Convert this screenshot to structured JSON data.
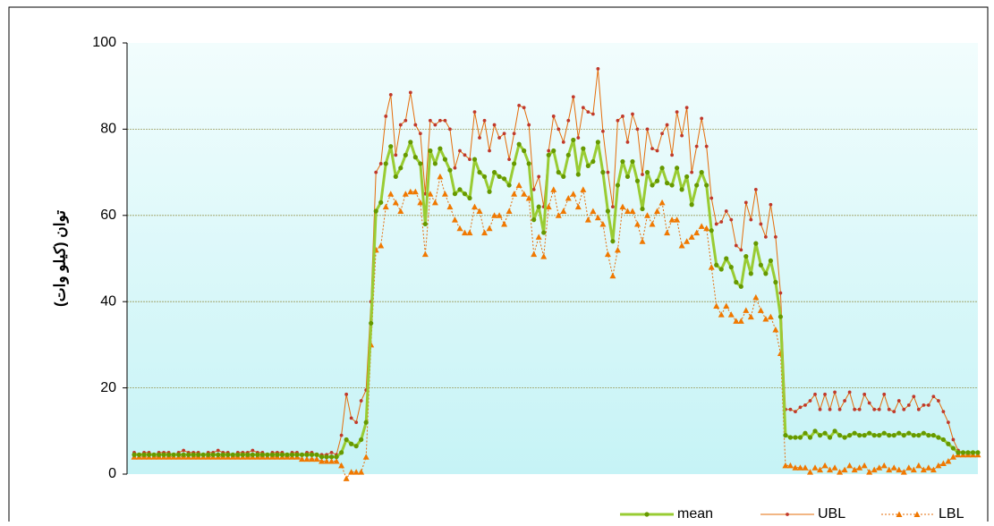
{
  "chart_data": {
    "type": "line",
    "y_label": "توان (کیلو وات)",
    "ylim": [
      0,
      100
    ],
    "yticks": [
      0,
      20,
      40,
      60,
      80,
      100
    ],
    "grid": true,
    "legend": "bottom-right",
    "series": [
      {
        "name": "mean",
        "color": "#99cc33",
        "marker_color": "#669900",
        "marker": "circle",
        "dashed": false,
        "values": [
          4.5,
          4.5,
          4.5,
          4.5,
          4.5,
          4.5,
          4.5,
          4.5,
          4.5,
          4.5,
          4.5,
          4.5,
          4.5,
          4.5,
          4.5,
          4.5,
          4.5,
          4.5,
          4.5,
          4.5,
          4.5,
          4.5,
          4.5,
          4.5,
          4.5,
          4.5,
          4.5,
          4.5,
          4.5,
          4.5,
          4.5,
          4.5,
          4.5,
          4.5,
          4.5,
          4.5,
          4.5,
          4.5,
          4,
          4,
          4,
          4,
          5,
          8,
          7,
          6.5,
          8,
          12,
          35,
          61,
          63,
          72,
          76,
          69,
          71,
          74,
          77,
          73.5,
          72,
          58,
          75,
          72,
          75.5,
          73,
          70.5,
          65,
          66,
          65,
          64,
          73,
          70,
          69,
          65.5,
          70,
          69,
          68.5,
          67,
          72,
          76.5,
          75,
          72,
          59,
          62,
          56,
          74,
          75,
          70,
          69,
          74,
          77.5,
          69.5,
          75.5,
          71.5,
          72.5,
          77,
          70,
          61,
          54,
          67,
          72.5,
          69,
          72.5,
          68,
          61.5,
          70,
          67,
          68,
          71,
          67.5,
          67,
          71,
          66,
          69,
          62.5,
          67,
          70,
          67,
          56.5,
          48.5,
          47.5,
          50,
          48,
          44.5,
          43.5,
          50.5,
          46.5,
          53.5,
          48.5,
          46.5,
          49.5,
          44.5,
          36.5,
          9,
          8.5,
          8.5,
          8.5,
          9.5,
          8.5,
          10,
          9,
          9.5,
          8.5,
          10,
          9,
          8.5,
          9,
          9.5,
          9,
          9,
          9.5,
          9,
          9,
          9.5,
          9,
          9,
          9.5,
          9,
          9.5,
          9,
          9,
          9.5,
          9,
          9,
          8.5,
          8,
          7,
          6,
          5,
          5,
          5,
          5,
          5
        ]
      },
      {
        "name": "UBL",
        "color": "#e46c0a",
        "marker_color": "#c0392b",
        "marker": "circle",
        "dashed": false,
        "values": [
          5,
          4.5,
          5,
          5,
          4.5,
          5,
          5,
          5,
          4.5,
          5,
          5.5,
          5,
          5,
          5,
          4.5,
          5,
          5,
          5.5,
          5,
          5,
          4.5,
          5,
          5,
          5,
          5.5,
          5,
          5,
          4.5,
          5,
          5,
          5,
          4.5,
          5,
          5,
          4.5,
          5,
          5,
          4.5,
          4.5,
          4.5,
          5,
          4.5,
          9,
          18.5,
          13,
          12,
          17,
          19.5,
          40,
          70,
          72,
          83,
          88,
          74,
          81,
          82,
          88.5,
          81,
          79,
          65,
          82,
          81,
          82,
          82,
          80,
          71,
          75,
          74,
          73,
          84,
          78,
          82,
          75,
          81,
          78,
          79,
          73,
          79,
          85.5,
          85,
          81,
          66,
          69,
          62,
          75,
          83,
          80,
          77,
          82,
          87.5,
          78,
          85,
          84,
          83.5,
          94,
          79.5,
          70,
          62,
          82,
          83,
          77,
          83.5,
          80,
          69.5,
          80,
          75.5,
          75,
          79,
          81,
          74,
          84,
          78.5,
          85,
          70,
          76,
          82.5,
          76,
          64,
          58,
          58.5,
          61,
          59,
          53,
          52,
          63,
          59,
          66,
          58,
          55,
          62.5,
          55,
          42,
          15,
          15,
          14.5,
          15.5,
          16,
          17,
          18.5,
          15,
          18.5,
          15,
          19,
          15,
          17,
          19,
          15,
          15,
          18.5,
          16.5,
          15,
          15,
          18.5,
          15,
          14.5,
          17,
          15,
          16,
          18,
          15,
          16,
          16,
          18,
          17,
          14.5,
          12,
          8,
          5.5,
          5,
          5,
          5,
          5
        ]
      },
      {
        "name": "LBL",
        "color": "#e46c0a",
        "marker_color": "#f07800",
        "marker": "triangle",
        "dashed": true,
        "values": [
          4,
          4,
          4,
          4,
          4,
          4,
          4,
          4,
          4,
          4,
          4,
          4,
          4,
          4,
          4,
          4,
          4,
          4,
          4,
          4,
          4,
          4,
          4,
          4,
          4,
          4,
          4,
          4,
          4,
          4,
          4,
          4,
          4,
          4,
          3.5,
          3.5,
          3.5,
          3.5,
          3,
          3,
          3,
          3,
          2,
          -1,
          0.5,
          0.5,
          0.5,
          4,
          30,
          52,
          53,
          62,
          65,
          63,
          61,
          65,
          65.5,
          65.5,
          63,
          51,
          65,
          63,
          69,
          65,
          62,
          59,
          57,
          56,
          56,
          62,
          61,
          56,
          57,
          60,
          60,
          58,
          61,
          65,
          67,
          65,
          64,
          51,
          55,
          50.5,
          62,
          66,
          60,
          61,
          64,
          65,
          62,
          66,
          59,
          61,
          59.5,
          58,
          51,
          46,
          52,
          62,
          61,
          61,
          58,
          54,
          60,
          58,
          61,
          63,
          56,
          59,
          59,
          53,
          54,
          55,
          56,
          57.5,
          57,
          48,
          39,
          37,
          39,
          37,
          35.5,
          35.5,
          38,
          36.5,
          41,
          38,
          36,
          36.5,
          33.5,
          28,
          2,
          2,
          1.5,
          1.5,
          1.5,
          0.5,
          1.5,
          1,
          2,
          1,
          1.5,
          0.5,
          1,
          2,
          1,
          1.5,
          2,
          0.5,
          1,
          1.5,
          2,
          1,
          1.5,
          1,
          0.5,
          1.5,
          1,
          2,
          1,
          1.5,
          1,
          2,
          2.5,
          3,
          4,
          4.5,
          4.5,
          4.5,
          4.5,
          4.5
        ]
      }
    ]
  }
}
